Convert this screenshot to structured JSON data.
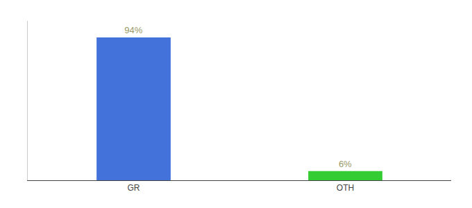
{
  "chart_data": {
    "type": "bar",
    "categories": [
      "GR",
      "OTH"
    ],
    "values": [
      94,
      6
    ],
    "value_labels": [
      "94%",
      "6%"
    ],
    "colors": [
      "#4472db",
      "#33cc33"
    ],
    "ylim": [
      0,
      105
    ],
    "grid": false,
    "data_labels": true,
    "tick_labels": "x"
  }
}
